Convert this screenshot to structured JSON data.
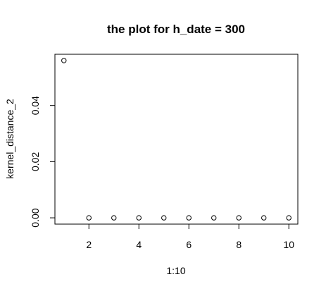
{
  "chart_data": {
    "type": "scatter",
    "title": "the plot for h_date = 300",
    "xlabel": "1:10",
    "ylabel": "kernel_distance_2",
    "x": [
      1,
      2,
      3,
      4,
      5,
      6,
      7,
      8,
      9,
      10
    ],
    "y": [
      0.056,
      0,
      0,
      0,
      0,
      0,
      0,
      0,
      0,
      0
    ],
    "xlim": [
      0.64,
      10.36
    ],
    "ylim": [
      -0.00224,
      0.05824
    ],
    "x_ticks": [
      2,
      4,
      6,
      8,
      10
    ],
    "x_tick_labels": [
      "2",
      "4",
      "6",
      "8",
      "10"
    ],
    "y_ticks": [
      0,
      0.02,
      0.04
    ],
    "y_tick_labels": [
      "0.00",
      "0.02",
      "0.04"
    ],
    "marker": "open-circle",
    "grid": false,
    "colors": {
      "background": "#ffffff",
      "foreground": "#000000"
    }
  }
}
